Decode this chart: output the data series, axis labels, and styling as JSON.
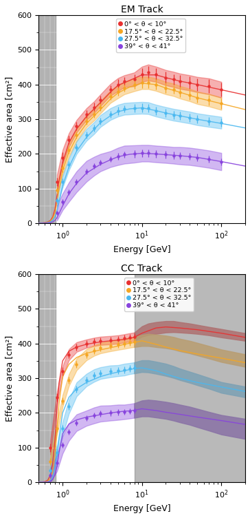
{
  "title_top": "EM Track",
  "title_bottom": "CC Track",
  "xlabel": "Energy [GeV]",
  "ylabel": "Effective area [cm²]",
  "ylim": [
    0,
    600
  ],
  "xlim": [
    0.5,
    200
  ],
  "legend_labels": [
    "0° < θ < 10°",
    "17.5° < θ < 22.5°",
    "27.5° < θ < 32.5°",
    "39° < θ < 41°"
  ],
  "colors": [
    "#e83030",
    "#f5a623",
    "#4ab8f0",
    "#8844dd"
  ],
  "gray_left_xmax": 0.82,
  "cc_gray_right_xmin": 8.0,
  "em_data": {
    "energies": [
      0.85,
      1.0,
      1.2,
      1.5,
      2.0,
      2.5,
      3.0,
      4.0,
      5.0,
      6.0,
      8.0,
      10.0,
      12.0,
      15.0,
      20.0,
      25.0,
      30.0,
      40.0,
      50.0,
      70.0,
      100.0
    ],
    "series": [
      {
        "y": [
          120,
          190,
          240,
          280,
          315,
          335,
          355,
          385,
          400,
          410,
          415,
          430,
          435,
          430,
          420,
          415,
          410,
          405,
          400,
          395,
          385
        ],
        "yerr": [
          12,
          15,
          12,
          12,
          12,
          12,
          12,
          12,
          15,
          12,
          15,
          18,
          18,
          18,
          18,
          15,
          18,
          18,
          18,
          20,
          20
        ],
        "band_lo": [
          100,
          168,
          220,
          262,
          298,
          318,
          338,
          368,
          381,
          393,
          395,
          408,
          412,
          408,
          398,
          393,
          388,
          383,
          378,
          372,
          362
        ],
        "band_hi": [
          140,
          212,
          260,
          298,
          332,
          352,
          372,
          402,
          419,
          427,
          435,
          452,
          458,
          452,
          442,
          437,
          432,
          427,
          422,
          418,
          408
        ]
      },
      {
        "y": [
          95,
          160,
          210,
          255,
          295,
          315,
          335,
          365,
          380,
          390,
          400,
          405,
          405,
          400,
          390,
          385,
          378,
          370,
          362,
          355,
          345
        ],
        "yerr": [
          10,
          12,
          10,
          10,
          10,
          10,
          10,
          10,
          12,
          10,
          12,
          15,
          15,
          15,
          15,
          12,
          15,
          15,
          15,
          15,
          15
        ],
        "band_lo": [
          78,
          140,
          192,
          237,
          277,
          297,
          317,
          347,
          361,
          372,
          381,
          387,
          387,
          382,
          372,
          367,
          360,
          352,
          344,
          337,
          327
        ],
        "band_hi": [
          112,
          180,
          228,
          273,
          313,
          333,
          353,
          383,
          399,
          408,
          419,
          423,
          423,
          418,
          408,
          403,
          396,
          388,
          380,
          373,
          363
        ]
      },
      {
        "y": [
          65,
          120,
          170,
          218,
          255,
          275,
          295,
          315,
          325,
          330,
          332,
          333,
          332,
          325,
          318,
          313,
          310,
          305,
          300,
          295,
          290
        ],
        "yerr": [
          8,
          10,
          10,
          10,
          10,
          10,
          10,
          10,
          12,
          10,
          12,
          12,
          12,
          12,
          12,
          12,
          12,
          12,
          12,
          12,
          12
        ],
        "band_lo": [
          50,
          103,
          153,
          200,
          238,
          258,
          278,
          298,
          308,
          313,
          315,
          316,
          315,
          308,
          301,
          296,
          293,
          288,
          283,
          278,
          273
        ],
        "band_hi": [
          80,
          137,
          187,
          236,
          272,
          292,
          312,
          332,
          342,
          347,
          349,
          350,
          349,
          342,
          335,
          330,
          327,
          322,
          317,
          312,
          307
        ]
      },
      {
        "y": [
          30,
          62,
          90,
          120,
          150,
          165,
          175,
          185,
          193,
          198,
          200,
          202,
          202,
          200,
          198,
          196,
          195,
          193,
          190,
          185,
          178
        ],
        "yerr": [
          6,
          8,
          8,
          8,
          8,
          8,
          8,
          8,
          10,
          8,
          10,
          10,
          10,
          10,
          10,
          10,
          10,
          10,
          10,
          10,
          10
        ],
        "band_lo": [
          8,
          38,
          62,
          90,
          120,
          138,
          150,
          162,
          168,
          172,
          175,
          178,
          178,
          176,
          174,
          172,
          170,
          168,
          165,
          160,
          153
        ],
        "band_hi": [
          52,
          86,
          118,
          150,
          180,
          192,
          200,
          208,
          218,
          224,
          225,
          226,
          226,
          224,
          222,
          220,
          220,
          218,
          215,
          210,
          203
        ]
      }
    ],
    "fit_x": [
      0.5,
      0.55,
      0.6,
      0.65,
      0.7,
      0.75,
      0.8,
      0.85,
      0.9,
      1.0,
      1.2,
      1.5,
      2.0,
      3.0,
      4.0,
      5.0,
      7.0,
      10.0,
      15.0,
      20.0,
      30.0,
      50.0,
      100.0,
      200.0
    ],
    "fit_series": [
      [
        0.5,
        1,
        2,
        4,
        8,
        18,
        40,
        80,
        120,
        175,
        232,
        272,
        308,
        348,
        378,
        398,
        412,
        428,
        428,
        420,
        410,
        400,
        385,
        370
      ],
      [
        0.3,
        0.7,
        1.5,
        3,
        6,
        14,
        30,
        60,
        95,
        152,
        205,
        248,
        288,
        328,
        358,
        376,
        393,
        404,
        400,
        390,
        378,
        362,
        345,
        328
      ],
      [
        0.2,
        0.4,
        0.9,
        2,
        4,
        9,
        18,
        35,
        60,
        108,
        162,
        208,
        248,
        290,
        310,
        322,
        330,
        333,
        325,
        318,
        310,
        300,
        288,
        275
      ],
      [
        0.1,
        0.2,
        0.4,
        0.8,
        2,
        4,
        8,
        16,
        28,
        50,
        85,
        115,
        145,
        170,
        183,
        192,
        199,
        202,
        200,
        198,
        195,
        190,
        178,
        165
      ]
    ]
  },
  "cc_data": {
    "energies": [
      0.7,
      0.85,
      1.0,
      1.2,
      1.5,
      2.0,
      2.5,
      3.0,
      4.0,
      5.0,
      6.0,
      7.0,
      8.0
    ],
    "series": [
      {
        "y": [
          100,
          245,
          320,
          368,
          390,
          400,
          405,
          408,
          410,
          412,
          415,
          418,
          420
        ],
        "yerr": [
          12,
          12,
          12,
          10,
          10,
          10,
          10,
          10,
          10,
          10,
          10,
          10,
          10
        ],
        "band_lo": [
          80,
          228,
          305,
          352,
          376,
          388,
          393,
          396,
          398,
          400,
          403,
          406,
          408
        ],
        "band_hi": [
          120,
          262,
          335,
          384,
          404,
          412,
          417,
          420,
          422,
          424,
          427,
          430,
          432
        ]
      },
      {
        "y": [
          60,
          155,
          235,
          295,
          340,
          368,
          380,
          387,
          393,
          397,
          400,
          403,
          405
        ],
        "yerr": [
          10,
          10,
          10,
          10,
          10,
          10,
          10,
          10,
          10,
          10,
          10,
          10,
          10
        ],
        "band_lo": [
          44,
          138,
          218,
          278,
          323,
          352,
          365,
          372,
          378,
          382,
          385,
          388,
          390
        ],
        "band_hi": [
          76,
          172,
          252,
          312,
          357,
          384,
          395,
          402,
          408,
          412,
          415,
          418,
          420
        ]
      },
      {
        "y": [
          35,
          85,
          155,
          218,
          268,
          295,
          308,
          315,
          320,
          322,
          325,
          328,
          330
        ],
        "yerr": [
          8,
          10,
          10,
          10,
          10,
          10,
          10,
          10,
          10,
          10,
          10,
          10,
          10
        ],
        "band_lo": [
          18,
          65,
          135,
          198,
          248,
          277,
          290,
          298,
          303,
          306,
          308,
          312,
          314
        ],
        "band_hi": [
          52,
          105,
          175,
          238,
          288,
          313,
          326,
          332,
          337,
          338,
          342,
          344,
          346
        ]
      },
      {
        "y": [
          20,
          55,
          108,
          145,
          172,
          185,
          193,
          198,
          200,
          202,
          203,
          205,
          207
        ],
        "yerr": [
          8,
          8,
          8,
          8,
          8,
          8,
          8,
          8,
          8,
          8,
          8,
          8,
          8
        ],
        "band_lo": [
          0,
          32,
          83,
          120,
          148,
          163,
          170,
          175,
          178,
          180,
          182,
          184,
          186
        ],
        "band_hi": [
          40,
          78,
          133,
          170,
          196,
          207,
          216,
          221,
          222,
          224,
          224,
          226,
          228
        ]
      }
    ],
    "fit_x": [
      0.5,
      0.55,
      0.6,
      0.65,
      0.7,
      0.75,
      0.8,
      0.85,
      0.9,
      1.0,
      1.2,
      1.5,
      2.0,
      3.0,
      4.0,
      5.0,
      6.0,
      7.0,
      8.0,
      10.0,
      15.0,
      20.0,
      30.0,
      50.0,
      100.0,
      200.0
    ],
    "fit_series": [
      [
        0.3,
        0.7,
        2,
        6,
        20,
        55,
        120,
        210,
        285,
        350,
        378,
        390,
        398,
        405,
        408,
        410,
        412,
        415,
        418,
        430,
        445,
        448,
        445,
        440,
        430,
        418
      ],
      [
        0.2,
        0.4,
        1,
        3,
        10,
        30,
        80,
        150,
        225,
        305,
        340,
        360,
        372,
        382,
        388,
        393,
        398,
        401,
        403,
        408,
        398,
        390,
        380,
        370,
        358,
        345
      ],
      [
        0.1,
        0.2,
        0.5,
        1.5,
        5,
        15,
        42,
        78,
        128,
        200,
        245,
        270,
        288,
        305,
        313,
        318,
        322,
        325,
        328,
        330,
        322,
        312,
        300,
        288,
        275,
        262
      ],
      [
        0.05,
        0.1,
        0.3,
        0.8,
        3,
        8,
        22,
        45,
        85,
        140,
        168,
        180,
        188,
        195,
        200,
        203,
        205,
        206,
        208,
        212,
        207,
        202,
        196,
        188,
        178,
        167
      ]
    ],
    "right_energies": [
      8.0,
      10.0,
      12.0,
      15.0,
      20.0,
      25.0,
      30.0,
      40.0,
      50.0,
      70.0,
      100.0,
      200.0
    ],
    "right_series": [
      {
        "band_lo": [
          408,
          420,
          425,
          428,
          432,
          433,
          432,
          430,
          428,
          424,
          418,
          408
        ],
        "band_hi": [
          432,
          450,
          458,
          462,
          465,
          465,
          462,
          458,
          454,
          448,
          442,
          430
        ]
      },
      {
        "band_lo": [
          390,
          393,
          393,
          390,
          387,
          383,
          378,
          372,
          366,
          357,
          347,
          333
        ],
        "band_hi": [
          420,
          425,
          428,
          426,
          423,
          419,
          414,
          408,
          402,
          393,
          383,
          369
        ]
      },
      {
        "band_lo": [
          314,
          318,
          317,
          313,
          307,
          301,
          295,
          287,
          280,
          270,
          258,
          245
        ],
        "band_hi": [
          346,
          352,
          352,
          348,
          342,
          335,
          328,
          319,
          312,
          301,
          289,
          276
        ]
      },
      {
        "band_lo": [
          186,
          190,
          190,
          187,
          183,
          178,
          173,
          166,
          159,
          149,
          138,
          125
        ],
        "band_hi": [
          228,
          236,
          238,
          236,
          232,
          228,
          224,
          218,
          212,
          203,
          194,
          183
        ]
      }
    ]
  }
}
